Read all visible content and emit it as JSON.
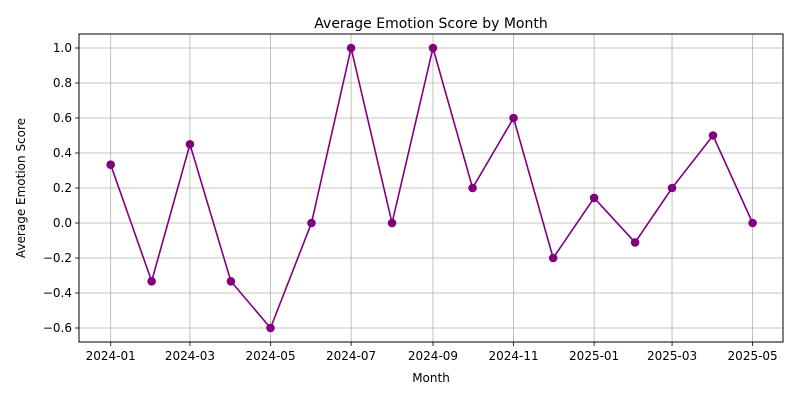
{
  "chart_data": {
    "type": "line",
    "title": "Average Emotion Score by Month",
    "xlabel": "Month",
    "ylabel": "Average Emotion Score",
    "x": [
      "2024-01",
      "2024-02",
      "2024-03",
      "2024-04",
      "2024-05",
      "2024-06",
      "2024-07",
      "2024-08",
      "2024-09",
      "2024-10",
      "2024-11",
      "2024-12",
      "2025-01",
      "2025-02",
      "2025-03",
      "2025-04",
      "2025-05"
    ],
    "series": [
      {
        "values": [
          0.333,
          -0.333,
          0.45,
          -0.333,
          -0.6,
          0.0,
          1.0,
          0.0,
          1.0,
          0.2,
          0.6,
          -0.2,
          0.143,
          -0.111,
          0.2,
          0.5,
          0.0
        ],
        "color": "#800080",
        "marker": "circle"
      }
    ],
    "x_tick_labels": [
      "2024-01",
      "2024-03",
      "2024-05",
      "2024-07",
      "2024-09",
      "2024-11",
      "2025-01",
      "2025-03",
      "2025-05"
    ],
    "y_ticks": [
      -0.6,
      -0.4,
      -0.2,
      0.0,
      0.2,
      0.4,
      0.6,
      0.8,
      1.0
    ],
    "y_tick_labels": [
      "−0.6",
      "−0.4",
      "−0.2",
      "0.0",
      "0.2",
      "0.4",
      "0.6",
      "0.8",
      "1.0"
    ],
    "ylim": [
      -0.68,
      1.08
    ],
    "xlim": [
      "2023-12-08",
      "2025-05-24"
    ],
    "grid": true,
    "gridColor": "#b0b0b0",
    "axisColor": "#000000"
  }
}
